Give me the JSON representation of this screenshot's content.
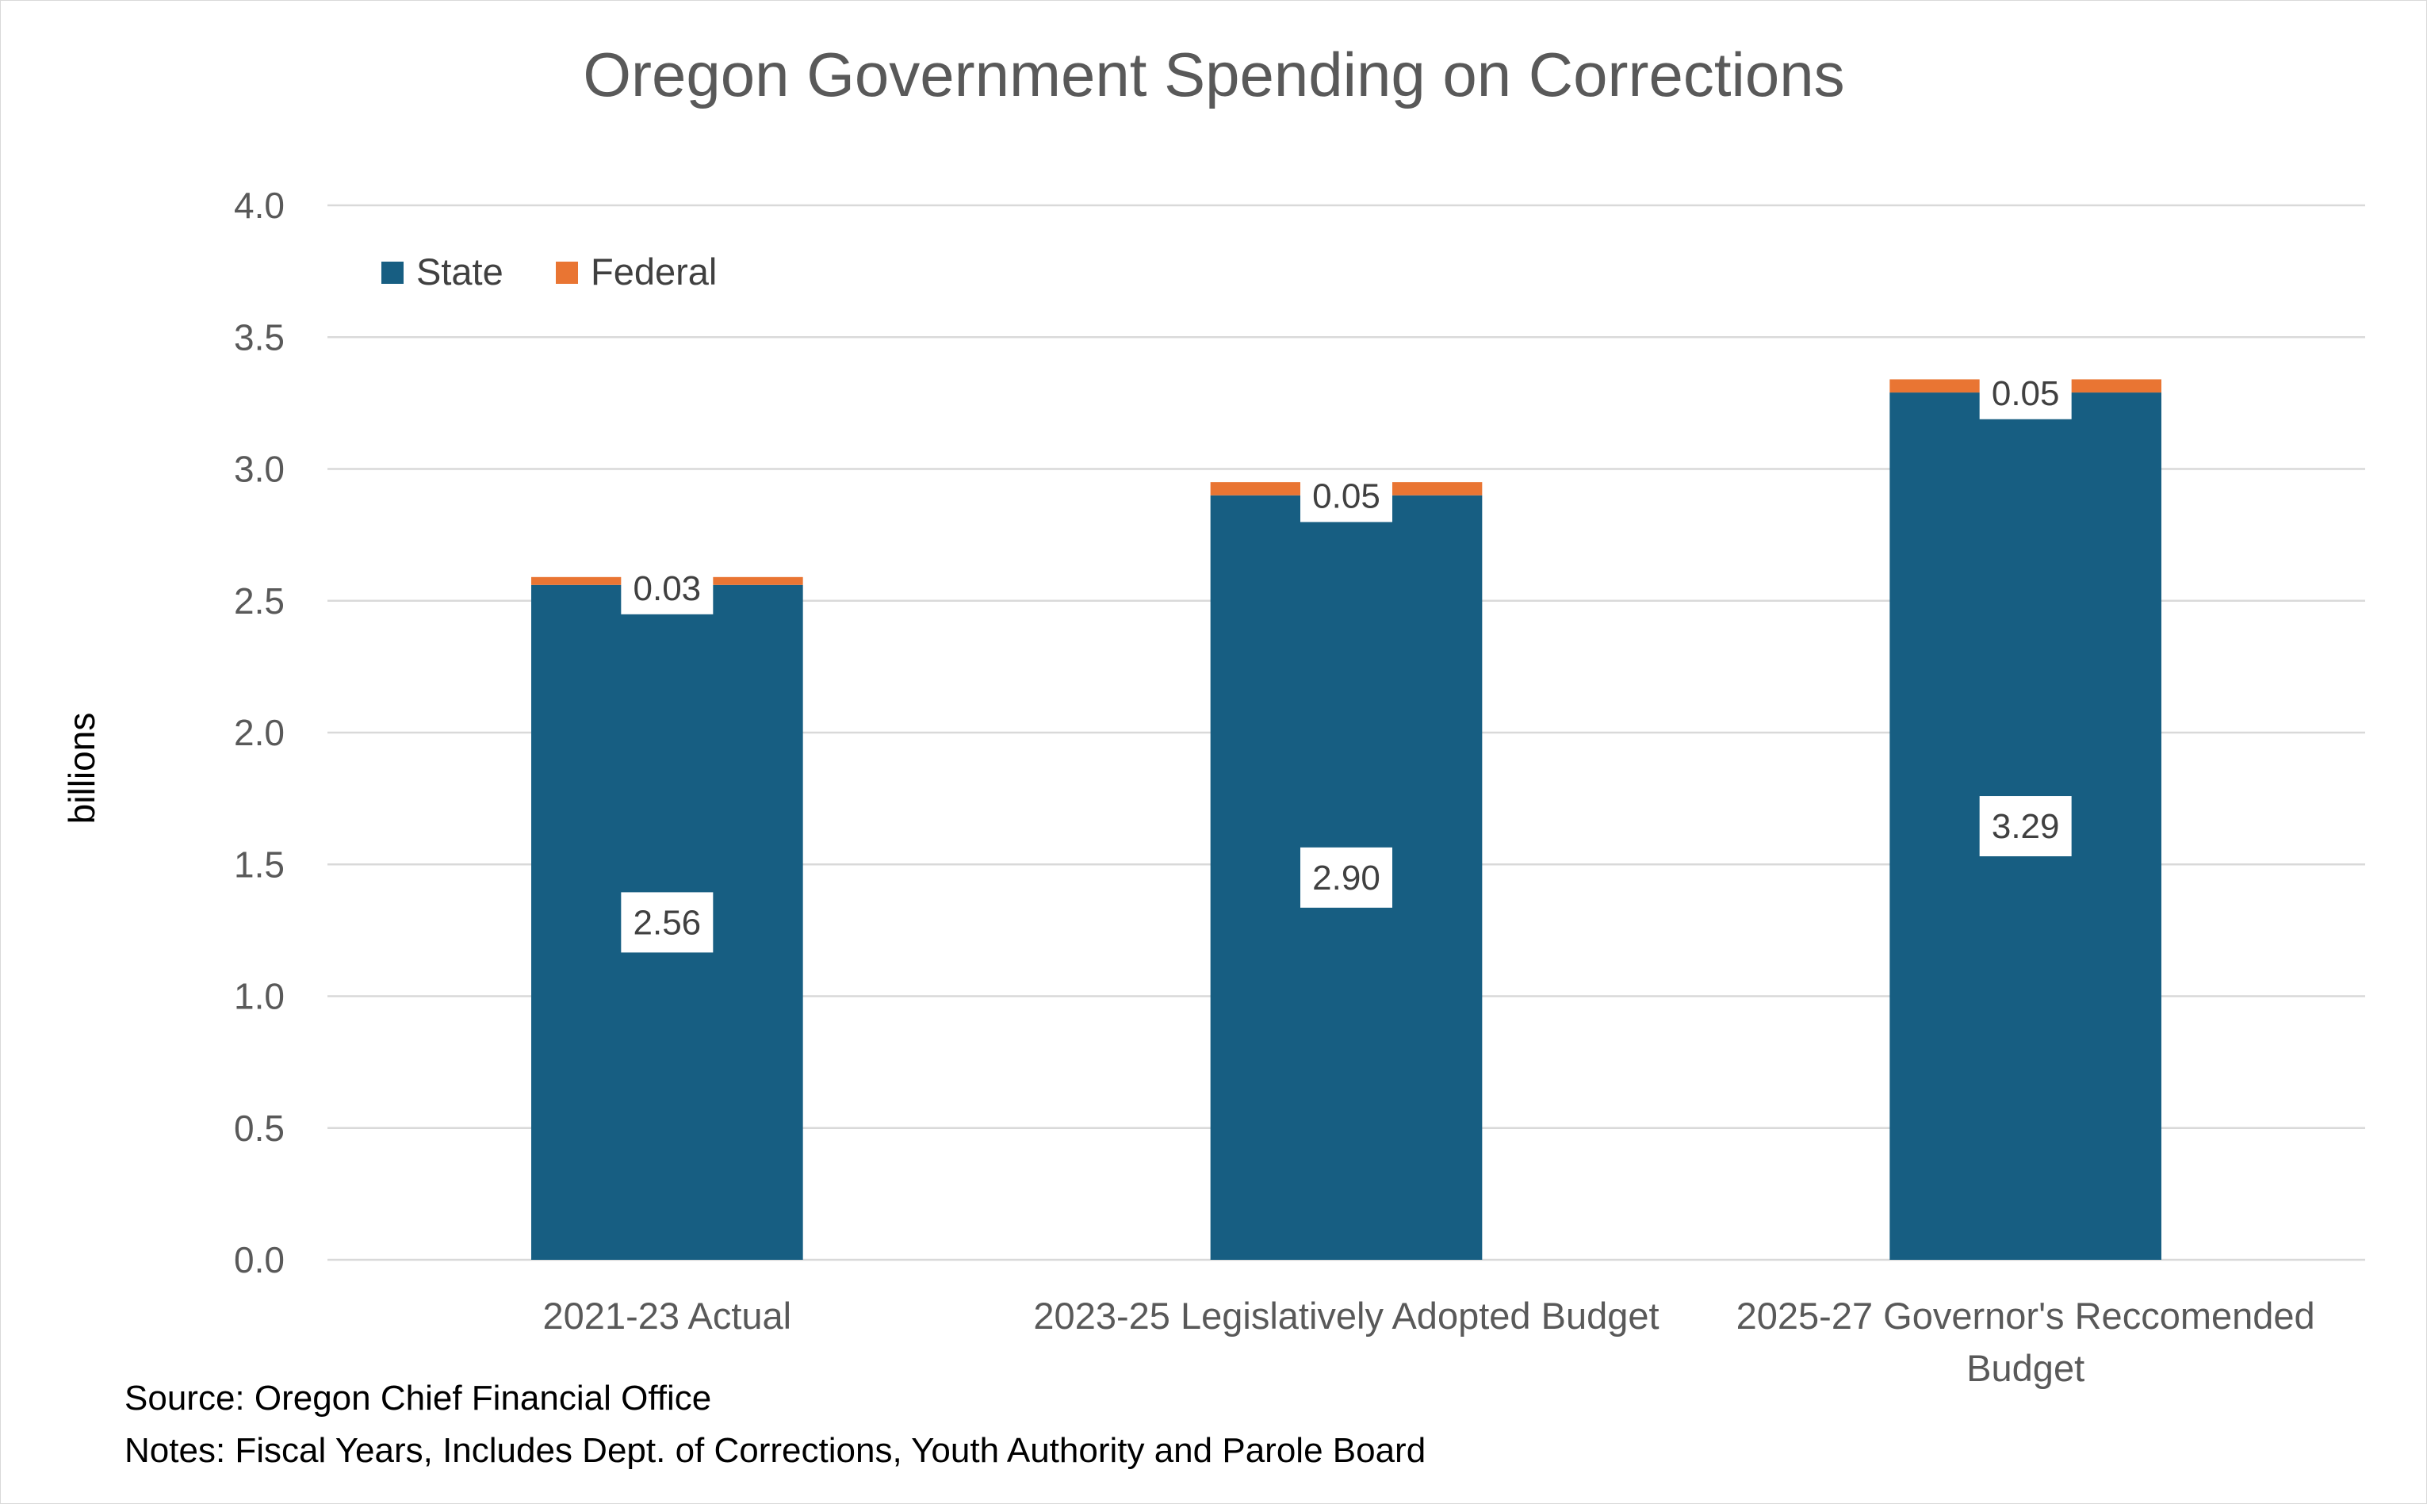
{
  "chart_data": {
    "type": "bar",
    "stacked": true,
    "title": "Oregon Government Spending on Corrections",
    "xlabel": "",
    "ylabel": "billions",
    "ylim": [
      0,
      4.0
    ],
    "yticks": [
      "0.0",
      "0.5",
      "1.0",
      "1.5",
      "2.0",
      "2.5",
      "3.0",
      "3.5",
      "4.0"
    ],
    "categories": [
      [
        "2021-23 Actual"
      ],
      [
        "2023-25 Legislatively Adopted Budget"
      ],
      [
        "2025-27 Governor's Reccomended",
        "Budget"
      ]
    ],
    "series": [
      {
        "name": "State",
        "color": "#175e82",
        "values": [
          2.56,
          2.9,
          3.29
        ],
        "labels": [
          "2.56",
          "2.90",
          "3.29"
        ]
      },
      {
        "name": "Federal",
        "color": "#e97533",
        "values": [
          0.03,
          0.05,
          0.05
        ],
        "labels": [
          "0.03",
          "0.05",
          "0.05"
        ]
      }
    ],
    "grid": true,
    "legend_position": "top-left"
  },
  "footer": {
    "source": "Source:  Oregon Chief Financial Office",
    "notes": "Notes:  Fiscal Years, Includes Dept. of Corrections, Youth Authority and Parole Board"
  }
}
